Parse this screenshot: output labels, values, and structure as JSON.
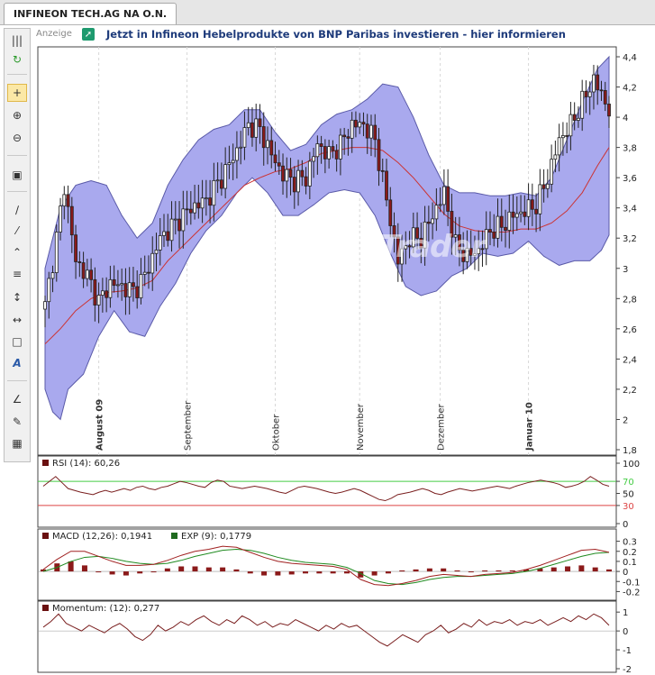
{
  "tab": {
    "title": "INFINEON TECH.AG NA O.N."
  },
  "ad": {
    "label": "Anzeige",
    "text": "Jetzt in Infineon Hebelprodukte von BNP Paribas investieren - hier informieren"
  },
  "watermark": "GodmodeTrader",
  "toolbar": {
    "icons": [
      "grip-icon",
      "refresh-icon",
      "crosshair-icon",
      "zoom-in-icon",
      "zoom-out-icon",
      "screen-icon",
      "line-icon",
      "channel-icon",
      "polyline-icon",
      "fibonacci-icon",
      "vertical-line-icon",
      "horizontal-line-icon",
      "rectangle-icon",
      "text-icon",
      "compass-icon",
      "pencil-icon",
      "palette-icon"
    ]
  },
  "colors": {
    "band_fill": "#a9a9ee",
    "candle_up": "#ffffff",
    "candle_down": "#8b1a1a",
    "ma_line": "#cc3333",
    "rsi_line": "#7a1f1f",
    "rsi_upper": "#44cc44",
    "rsi_lower": "#dd4444",
    "macd_line": "#a02020",
    "signal_line": "#1f8a1f",
    "histogram": "#8b1a1a"
  },
  "chart_data": [
    {
      "type": "candlestick",
      "ylim": [
        1.8,
        4.4
      ],
      "y_ticks": [
        "4,4",
        "4,2",
        "4",
        "3,8",
        "3,6",
        "3,4",
        "3,2",
        "3",
        "2,8",
        "2,6",
        "2,4",
        "2,2",
        "2",
        "1,8"
      ],
      "x_ticks": [
        "August 09",
        "September",
        "Oktober",
        "November",
        "Dezember",
        "Januar 10"
      ],
      "bold_x_ticks": [
        "August 09",
        "Januar 10"
      ],
      "anchors": [
        {
          "i": 0,
          "v": 2.75
        },
        {
          "i": 3,
          "v": 3.2
        },
        {
          "i": 5,
          "v": 3.55
        },
        {
          "i": 8,
          "v": 3.05
        },
        {
          "i": 11,
          "v": 2.95
        },
        {
          "i": 14,
          "v": 2.78
        },
        {
          "i": 17,
          "v": 2.9
        },
        {
          "i": 20,
          "v": 2.88
        },
        {
          "i": 23,
          "v": 2.85
        },
        {
          "i": 26,
          "v": 2.95
        },
        {
          "i": 30,
          "v": 3.2
        },
        {
          "i": 34,
          "v": 3.3
        },
        {
          "i": 38,
          "v": 3.4
        },
        {
          "i": 42,
          "v": 3.45
        },
        {
          "i": 46,
          "v": 3.6
        },
        {
          "i": 50,
          "v": 3.78
        },
        {
          "i": 53,
          "v": 3.95
        },
        {
          "i": 56,
          "v": 3.92
        },
        {
          "i": 59,
          "v": 3.75
        },
        {
          "i": 62,
          "v": 3.62
        },
        {
          "i": 65,
          "v": 3.58
        },
        {
          "i": 68,
          "v": 3.6
        },
        {
          "i": 71,
          "v": 3.82
        },
        {
          "i": 74,
          "v": 3.75
        },
        {
          "i": 77,
          "v": 3.82
        },
        {
          "i": 80,
          "v": 3.95
        },
        {
          "i": 83,
          "v": 3.95
        },
        {
          "i": 86,
          "v": 3.85
        },
        {
          "i": 89,
          "v": 3.45
        },
        {
          "i": 92,
          "v": 3.05
        },
        {
          "i": 95,
          "v": 3.2
        },
        {
          "i": 98,
          "v": 3.2
        },
        {
          "i": 101,
          "v": 3.35
        },
        {
          "i": 104,
          "v": 3.5
        },
        {
          "i": 107,
          "v": 3.15
        },
        {
          "i": 110,
          "v": 3.08
        },
        {
          "i": 113,
          "v": 3.12
        },
        {
          "i": 116,
          "v": 3.25
        },
        {
          "i": 119,
          "v": 3.28
        },
        {
          "i": 122,
          "v": 3.35
        },
        {
          "i": 125,
          "v": 3.38
        },
        {
          "i": 128,
          "v": 3.42
        },
        {
          "i": 131,
          "v": 3.6
        },
        {
          "i": 134,
          "v": 3.85
        },
        {
          "i": 137,
          "v": 3.95
        },
        {
          "i": 140,
          "v": 4.1
        },
        {
          "i": 143,
          "v": 4.25
        },
        {
          "i": 145,
          "v": 4.15
        },
        {
          "i": 147,
          "v": 4.05
        }
      ],
      "count": 148,
      "band_upper": [
        [
          0,
          3.0
        ],
        [
          4,
          3.4
        ],
        [
          8,
          3.55
        ],
        [
          12,
          3.58
        ],
        [
          16,
          3.55
        ],
        [
          20,
          3.35
        ],
        [
          24,
          3.2
        ],
        [
          28,
          3.3
        ],
        [
          32,
          3.55
        ],
        [
          36,
          3.72
        ],
        [
          40,
          3.85
        ],
        [
          44,
          3.92
        ],
        [
          48,
          3.95
        ],
        [
          52,
          4.05
        ],
        [
          56,
          4.05
        ],
        [
          60,
          3.9
        ],
        [
          64,
          3.78
        ],
        [
          68,
          3.82
        ],
        [
          72,
          3.95
        ],
        [
          76,
          4.02
        ],
        [
          80,
          4.05
        ],
        [
          84,
          4.12
        ],
        [
          88,
          4.22
        ],
        [
          92,
          4.2
        ],
        [
          96,
          4.0
        ],
        [
          100,
          3.75
        ],
        [
          104,
          3.55
        ],
        [
          108,
          3.5
        ],
        [
          112,
          3.5
        ],
        [
          116,
          3.48
        ],
        [
          120,
          3.48
        ],
        [
          124,
          3.5
        ],
        [
          128,
          3.48
        ],
        [
          132,
          3.6
        ],
        [
          136,
          3.85
        ],
        [
          140,
          4.1
        ],
        [
          144,
          4.32
        ],
        [
          147,
          4.4
        ]
      ],
      "band_lower": [
        [
          0,
          2.2
        ],
        [
          2,
          2.05
        ],
        [
          4,
          2.0
        ],
        [
          6,
          2.2
        ],
        [
          10,
          2.3
        ],
        [
          14,
          2.55
        ],
        [
          18,
          2.72
        ],
        [
          22,
          2.58
        ],
        [
          26,
          2.55
        ],
        [
          30,
          2.75
        ],
        [
          34,
          2.9
        ],
        [
          38,
          3.1
        ],
        [
          42,
          3.25
        ],
        [
          46,
          3.35
        ],
        [
          50,
          3.5
        ],
        [
          54,
          3.6
        ],
        [
          58,
          3.5
        ],
        [
          62,
          3.35
        ],
        [
          66,
          3.35
        ],
        [
          70,
          3.42
        ],
        [
          74,
          3.5
        ],
        [
          78,
          3.52
        ],
        [
          82,
          3.5
        ],
        [
          86,
          3.35
        ],
        [
          90,
          3.1
        ],
        [
          94,
          2.88
        ],
        [
          98,
          2.82
        ],
        [
          102,
          2.85
        ],
        [
          106,
          2.95
        ],
        [
          110,
          3.0
        ],
        [
          114,
          3.1
        ],
        [
          118,
          3.08
        ],
        [
          122,
          3.1
        ],
        [
          126,
          3.18
        ],
        [
          130,
          3.08
        ],
        [
          134,
          3.02
        ],
        [
          138,
          3.05
        ],
        [
          142,
          3.05
        ],
        [
          145,
          3.12
        ],
        [
          147,
          3.22
        ]
      ],
      "ma": [
        [
          0,
          2.5
        ],
        [
          4,
          2.6
        ],
        [
          8,
          2.72
        ],
        [
          12,
          2.8
        ],
        [
          16,
          2.84
        ],
        [
          20,
          2.85
        ],
        [
          24,
          2.87
        ],
        [
          28,
          2.92
        ],
        [
          32,
          3.05
        ],
        [
          36,
          3.15
        ],
        [
          40,
          3.25
        ],
        [
          44,
          3.35
        ],
        [
          48,
          3.45
        ],
        [
          52,
          3.55
        ],
        [
          56,
          3.6
        ],
        [
          60,
          3.64
        ],
        [
          64,
          3.66
        ],
        [
          68,
          3.7
        ],
        [
          72,
          3.76
        ],
        [
          76,
          3.78
        ],
        [
          80,
          3.8
        ],
        [
          84,
          3.8
        ],
        [
          88,
          3.78
        ],
        [
          92,
          3.7
        ],
        [
          96,
          3.6
        ],
        [
          100,
          3.48
        ],
        [
          104,
          3.36
        ],
        [
          108,
          3.28
        ],
        [
          112,
          3.25
        ],
        [
          116,
          3.24
        ],
        [
          120,
          3.24
        ],
        [
          124,
          3.26
        ],
        [
          128,
          3.26
        ],
        [
          132,
          3.3
        ],
        [
          136,
          3.38
        ],
        [
          140,
          3.5
        ],
        [
          144,
          3.68
        ],
        [
          147,
          3.8
        ]
      ]
    },
    {
      "type": "line",
      "name": "RSI",
      "label": "RSI (14): 60,26",
      "ylim": [
        0,
        100
      ],
      "y_ticks": [
        "100",
        "70",
        "50",
        "30",
        "0"
      ],
      "levels": [
        70,
        30
      ],
      "values": [
        62,
        70,
        78,
        68,
        58,
        55,
        52,
        50,
        48,
        52,
        55,
        52,
        55,
        58,
        55,
        60,
        62,
        58,
        56,
        60,
        62,
        66,
        70,
        68,
        65,
        62,
        60,
        68,
        72,
        70,
        62,
        60,
        58,
        60,
        62,
        60,
        58,
        55,
        52,
        50,
        55,
        60,
        62,
        60,
        58,
        55,
        52,
        50,
        52,
        55,
        58,
        55,
        50,
        45,
        40,
        38,
        42,
        48,
        50,
        52,
        55,
        58,
        55,
        50,
        48,
        52,
        55,
        58,
        56,
        54,
        56,
        58,
        60,
        62,
        60,
        58,
        62,
        65,
        68,
        70,
        72,
        70,
        68,
        65,
        60,
        62,
        65,
        70,
        78,
        72,
        65,
        62
      ]
    },
    {
      "type": "line",
      "name": "MACD",
      "label": "MACD (12,26): 0,1941",
      "signal_label": "EXP (9): 0,1779",
      "ylim": [
        -0.25,
        0.35
      ],
      "y_ticks": [
        "0.3",
        "0.2",
        "0.1",
        "0",
        "-0.1",
        "-0.2"
      ],
      "macd": [
        0.02,
        0.12,
        0.2,
        0.2,
        0.15,
        0.1,
        0.06,
        0.06,
        0.07,
        0.11,
        0.16,
        0.2,
        0.22,
        0.25,
        0.24,
        0.19,
        0.14,
        0.1,
        0.08,
        0.07,
        0.06,
        0.05,
        0.02,
        -0.08,
        -0.13,
        -0.14,
        -0.12,
        -0.09,
        -0.05,
        -0.03,
        -0.04,
        -0.05,
        -0.03,
        -0.02,
        -0.01,
        0.02,
        0.06,
        0.11,
        0.16,
        0.21,
        0.22,
        0.19
      ],
      "signal": [
        0.0,
        0.04,
        0.1,
        0.14,
        0.15,
        0.13,
        0.1,
        0.08,
        0.07,
        0.08,
        0.11,
        0.15,
        0.18,
        0.21,
        0.22,
        0.21,
        0.18,
        0.14,
        0.11,
        0.09,
        0.08,
        0.07,
        0.04,
        -0.02,
        -0.09,
        -0.12,
        -0.13,
        -0.11,
        -0.08,
        -0.06,
        -0.05,
        -0.05,
        -0.04,
        -0.03,
        -0.02,
        0.0,
        0.03,
        0.07,
        0.11,
        0.15,
        0.18,
        0.19
      ],
      "histogram": [
        0.02,
        0.08,
        0.1,
        0.06,
        0.0,
        -0.03,
        -0.04,
        -0.02,
        0.0,
        0.03,
        0.05,
        0.05,
        0.04,
        0.04,
        0.02,
        -0.02,
        -0.04,
        -0.04,
        -0.03,
        -0.02,
        -0.02,
        -0.02,
        -0.02,
        -0.06,
        -0.04,
        -0.02,
        0.01,
        0.02,
        0.03,
        0.03,
        0.01,
        0.0,
        0.01,
        0.01,
        0.01,
        0.02,
        0.03,
        0.04,
        0.05,
        0.06,
        0.04,
        0.02
      ]
    },
    {
      "type": "line",
      "name": "Momentum",
      "label": "Momentum: (12): 0,277",
      "ylim": [
        -2,
        1.2
      ],
      "y_ticks": [
        "1",
        "0",
        "-1",
        "-2"
      ],
      "values": [
        0.2,
        0.5,
        0.9,
        0.4,
        0.2,
        0.0,
        0.3,
        0.1,
        -0.1,
        0.2,
        0.4,
        0.1,
        -0.3,
        -0.5,
        -0.2,
        0.3,
        0.0,
        0.2,
        0.5,
        0.3,
        0.6,
        0.8,
        0.5,
        0.3,
        0.6,
        0.4,
        0.8,
        0.6,
        0.3,
        0.5,
        0.2,
        0.4,
        0.3,
        0.6,
        0.4,
        0.2,
        0.0,
        0.3,
        0.1,
        0.4,
        0.2,
        0.3,
        0.0,
        -0.3,
        -0.6,
        -0.8,
        -0.5,
        -0.2,
        -0.4,
        -0.6,
        -0.2,
        0.0,
        0.3,
        -0.1,
        0.1,
        0.4,
        0.2,
        0.6,
        0.3,
        0.5,
        0.4,
        0.6,
        0.3,
        0.5,
        0.4,
        0.6,
        0.3,
        0.5,
        0.7,
        0.5,
        0.8,
        0.6,
        0.9,
        0.7,
        0.3
      ]
    }
  ]
}
